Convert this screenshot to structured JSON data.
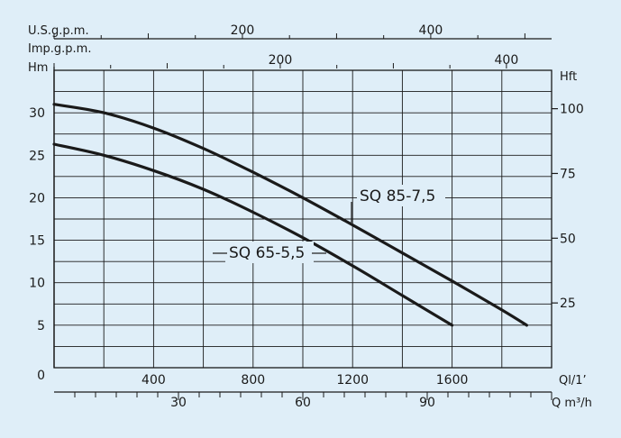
{
  "chart_data": {
    "type": "line",
    "title": "",
    "background": "#dfeef8",
    "grid": true,
    "line_color": "#1a1a1a",
    "axes": {
      "left": {
        "label": "Hm",
        "ticks": [
          0,
          5,
          10,
          15,
          20,
          25,
          30
        ],
        "tick_labels": [
          "0",
          "5",
          "10",
          "15",
          "20",
          "25",
          "30"
        ],
        "range": [
          0,
          35
        ]
      },
      "right": {
        "label": "Hft",
        "ticks": [
          25,
          50,
          75,
          100
        ],
        "tick_labels": [
          "25",
          "50",
          "75",
          "100"
        ]
      },
      "bottom_primary": {
        "label": "Ql/1’",
        "range": [
          0,
          2000
        ],
        "ticks": [
          400,
          800,
          1200,
          1600
        ],
        "tick_labels": [
          "400",
          "800",
          "1200",
          "1600"
        ]
      },
      "bottom_secondary": {
        "label": "Q m³/h",
        "ticks": [
          30,
          60,
          90
        ],
        "tick_labels": [
          "30",
          "60",
          "90"
        ]
      },
      "top_usgpm": {
        "label": "U.S.g.p.m.",
        "ticks": [
          200,
          400
        ],
        "tick_labels": [
          "200",
          "400"
        ]
      },
      "top_impgpm": {
        "label": "Imp.g.p.m.",
        "ticks": [
          200,
          400
        ],
        "tick_labels": [
          "200",
          "400"
        ]
      }
    },
    "series": [
      {
        "name": "SQ 85-7,5",
        "x": [
          0,
          200,
          400,
          600,
          800,
          1000,
          1200,
          1400,
          1600,
          1800,
          1900
        ],
        "y": [
          31,
          30,
          28.2,
          25.8,
          23,
          20,
          16.8,
          13.5,
          10.2,
          6.8,
          5
        ]
      },
      {
        "name": "SQ 65-5,5",
        "x": [
          0,
          200,
          400,
          600,
          800,
          1000,
          1200,
          1400,
          1600
        ],
        "y": [
          26.3,
          25,
          23.2,
          21,
          18.3,
          15.3,
          12,
          8.5,
          5
        ]
      }
    ]
  }
}
